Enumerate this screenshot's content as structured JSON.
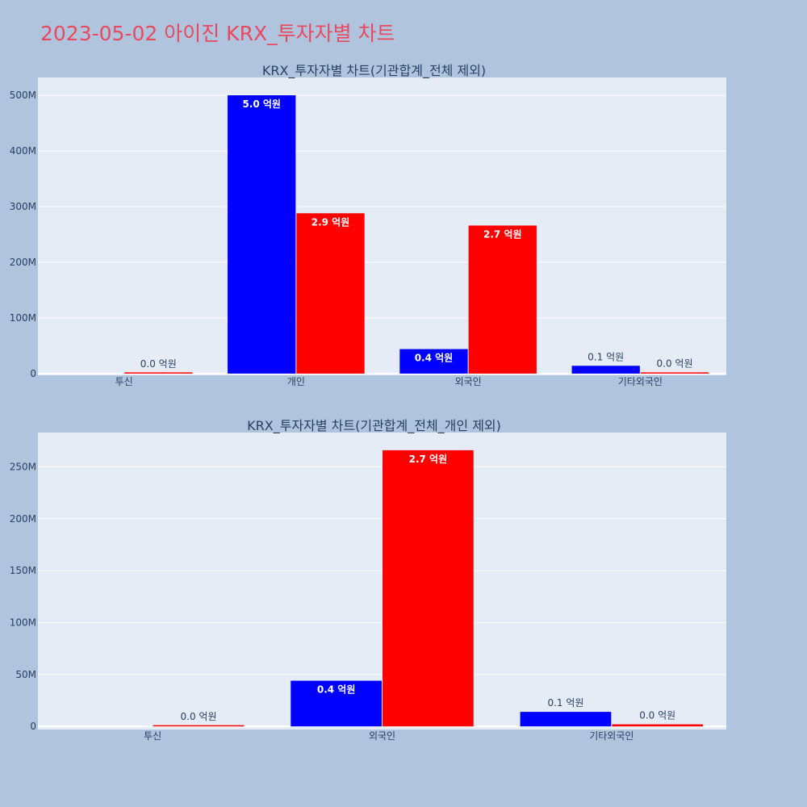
{
  "page": {
    "title": "2023-05-02 아이진 KRX_투자자별 차트"
  },
  "chart_data": [
    {
      "type": "bar",
      "title": "KRX_투자자별 차트(기관합계_전체 제외)",
      "categories": [
        "투신",
        "개인",
        "외국인",
        "기타외국인"
      ],
      "series": [
        {
          "color": "#0000ff",
          "values": [
            0,
            500000000,
            44000000,
            14000000
          ]
        },
        {
          "color": "#ff0000",
          "values": [
            1000000,
            288000000,
            266000000,
            2000000
          ]
        }
      ],
      "data_labels": [
        [
          "",
          "5.0 억원",
          "0.4 억원",
          "0.1 억원"
        ],
        [
          "0.0 억원",
          "2.9 억원",
          "2.7 억원",
          "0.0 억원"
        ]
      ],
      "y_ticks": [
        0,
        100000000,
        200000000,
        300000000,
        400000000,
        500000000
      ],
      "y_tick_labels": [
        "0",
        "100M",
        "200M",
        "300M",
        "400M",
        "500M"
      ],
      "ylim": [
        -3000000,
        532000000
      ],
      "grid": true
    },
    {
      "type": "bar",
      "title": "KRX_투자자별 차트(기관합계_전체_개인 제외)",
      "categories": [
        "투신",
        "외국인",
        "기타외국인"
      ],
      "series": [
        {
          "color": "#0000ff",
          "values": [
            0,
            44000000,
            14000000
          ]
        },
        {
          "color": "#ff0000",
          "values": [
            1000000,
            266000000,
            2000000
          ]
        }
      ],
      "data_labels": [
        [
          "",
          "0.4 억원",
          "0.1 억원"
        ],
        [
          "0.0 억원",
          "2.7 억원",
          "0.0 억원"
        ]
      ],
      "y_ticks": [
        0,
        50000000,
        100000000,
        150000000,
        200000000,
        250000000
      ],
      "y_tick_labels": [
        "0",
        "50M",
        "100M",
        "150M",
        "200M",
        "250M"
      ],
      "ylim": [
        -3000000,
        283000000
      ],
      "grid": true
    }
  ]
}
